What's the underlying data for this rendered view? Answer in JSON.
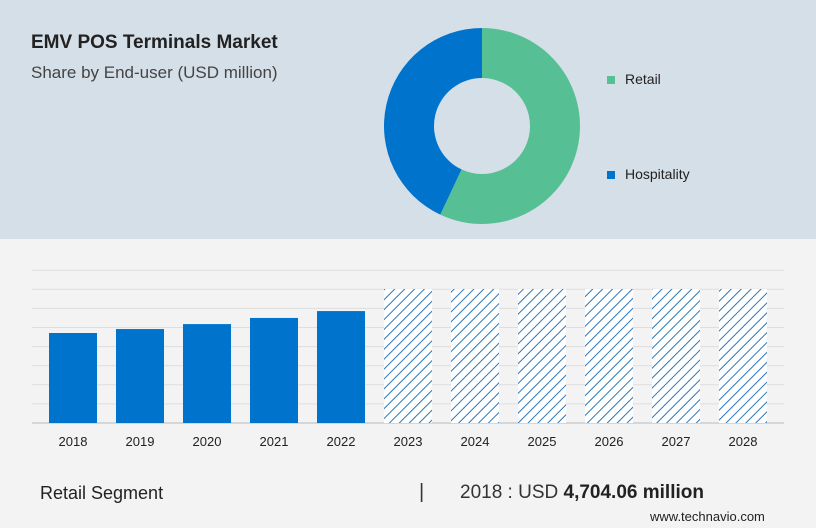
{
  "title": "EMV POS Terminals Market",
  "subtitle": "Share by End-user (USD million)",
  "footer": {
    "segment": "Retail Segment",
    "separator": "|",
    "year_label": "2018 : USD ",
    "value": "4,704.06 million",
    "site": "www.technavio.com"
  },
  "chart_data": [
    {
      "type": "pie",
      "donut": true,
      "slices": [
        {
          "name": "Retail",
          "share": 57,
          "color": "#56c094"
        },
        {
          "name": "Hospitality",
          "share": 43,
          "color": "#0073cc"
        }
      ],
      "legend_placement": "right"
    },
    {
      "type": "bar",
      "categories": [
        "2018",
        "2019",
        "2020",
        "2021",
        "2022",
        "2023",
        "2024",
        "2025",
        "2026",
        "2027",
        "2028"
      ],
      "values": [
        4704.06,
        4910,
        5170,
        5490,
        5850,
        null,
        null,
        null,
        null,
        null,
        null
      ],
      "forecast": [
        false,
        false,
        false,
        false,
        false,
        true,
        true,
        true,
        true,
        true,
        true
      ],
      "ylim": [
        0,
        8000
      ],
      "grid": true,
      "color": "#0073cc",
      "forecast_style": "hatched"
    }
  ]
}
